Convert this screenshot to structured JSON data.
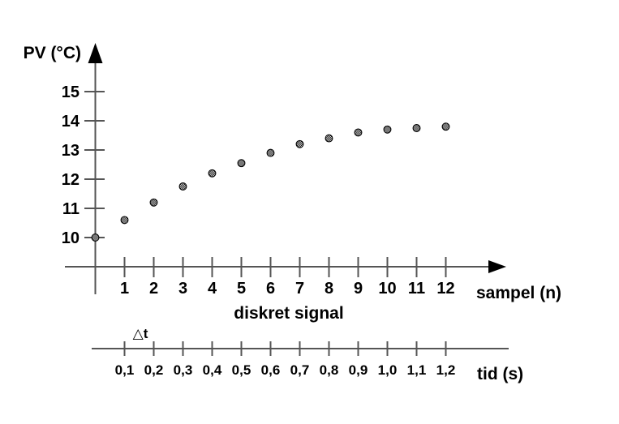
{
  "chart_data": {
    "type": "scatter",
    "title": "diskret signal",
    "xlabel": "sampel (n)",
    "ylabel": "PV (°C)",
    "x": [
      0,
      1,
      2,
      3,
      4,
      5,
      6,
      7,
      8,
      9,
      10,
      11,
      12
    ],
    "y": [
      10.0,
      10.6,
      11.2,
      11.75,
      12.2,
      12.55,
      12.9,
      13.2,
      13.4,
      13.6,
      13.7,
      13.75,
      13.8
    ],
    "x_ticks": [
      1,
      2,
      3,
      4,
      5,
      6,
      7,
      8,
      9,
      10,
      11,
      12
    ],
    "y_ticks": [
      15,
      14,
      13,
      12,
      11,
      10
    ],
    "xlim": [
      0,
      14
    ],
    "ylim": [
      9,
      16.3
    ],
    "grid": false,
    "legend": false,
    "point_style": "stippled-circle",
    "secondary_x_axis": {
      "label": "tid (s)",
      "tick_labels": [
        "0,1",
        "0,2",
        "0,3",
        "0,4",
        "0,5",
        "0,6",
        "0,7",
        "0,8",
        "0,9",
        "1,0",
        "1,1",
        "1,2"
      ],
      "annotation": "△t"
    },
    "colors": {
      "axis": "#555555",
      "text": "#000000",
      "point_fill": "#000000",
      "background": "#ffffff"
    }
  }
}
